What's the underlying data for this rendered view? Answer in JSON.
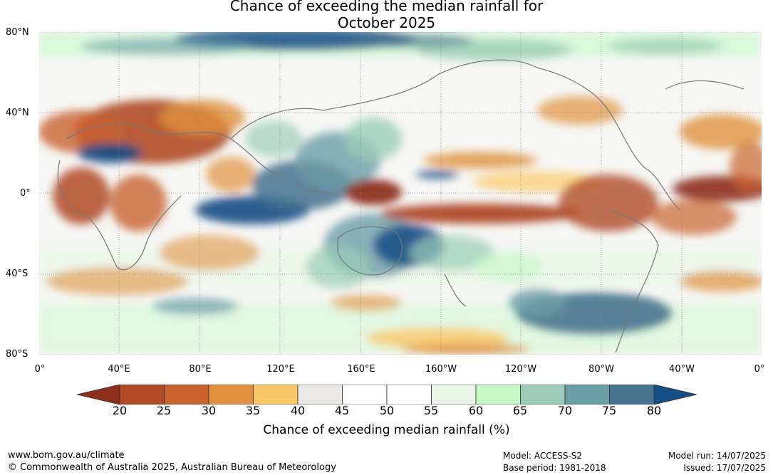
{
  "title_line1": "Chance of exceeding the median rainfall for",
  "title_line2": "October 2025",
  "map": {
    "lat_labels": [
      "80°N",
      "40°N",
      "0°",
      "40°S",
      "80°S"
    ],
    "lon_labels": [
      "0°",
      "40°E",
      "80°E",
      "120°E",
      "160°E",
      "160°W",
      "120°W",
      "80°W",
      "40°W",
      "0°"
    ]
  },
  "colorbar": {
    "ticks": [
      "20",
      "25",
      "30",
      "35",
      "40",
      "45",
      "50",
      "55",
      "60",
      "65",
      "70",
      "75",
      "80"
    ],
    "colors": {
      "below_20": "#8e2f1c",
      "20_25": "#b04a26",
      "25_30": "#c9622f",
      "30_35": "#e0913e",
      "35_40": "#fbc869",
      "40_45": "#eae8e4",
      "45_50": "#ffffff",
      "50_55": "#ffffff",
      "55_60": "#e8f5e6",
      "60_65": "#c7f9c8",
      "65_70": "#9bcdb8",
      "70_75": "#6b9ea8",
      "75_80": "#47738f",
      "above_80": "#154e86"
    },
    "label": "Chance of exceeding median rainfall (%)"
  },
  "footer": {
    "website": "www.bom.gov.au/climate",
    "copyright": "© Commonwealth of Australia 2025, Australian Bureau of Meteorology",
    "model": "Model: ACCESS-S2",
    "base_period": "Base period: 1981-2018",
    "model_run": "Model run: 14/07/2025",
    "issued": "Issued: 17/07/2025"
  }
}
